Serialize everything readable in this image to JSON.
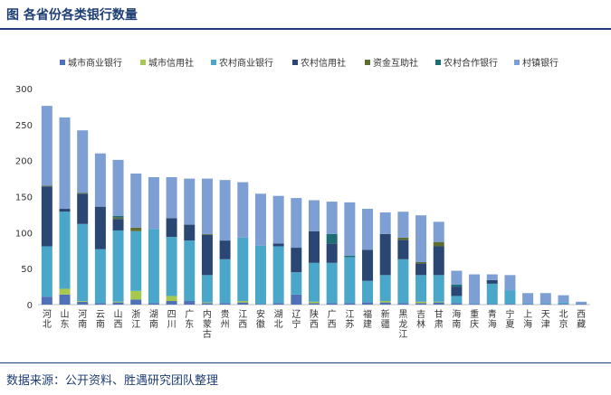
{
  "header": {
    "title": "图  各省份各类银行数量"
  },
  "footer": {
    "source": "数据来源：公开资料、胜遇研究团队整理"
  },
  "chart_data": {
    "type": "bar",
    "stacked": true,
    "title": "",
    "xlabel": "",
    "ylabel": "",
    "ylim": [
      0,
      300
    ],
    "yticks": [
      0,
      50,
      100,
      150,
      200,
      250,
      300
    ],
    "grid": false,
    "legend": "top",
    "categories": [
      "河北",
      "山东",
      "河南",
      "云南",
      "山西",
      "浙江",
      "湖南",
      "四川",
      "广东",
      "内蒙古",
      "贵州",
      "江西",
      "安徽",
      "湖北",
      "辽宁",
      "陕西",
      "广西",
      "江苏",
      "福建",
      "新疆",
      "黑龙江",
      "吉林",
      "甘肃",
      "海南",
      "重庆",
      "青海",
      "宁夏",
      "上海",
      "天津",
      "北京",
      "西藏"
    ],
    "series": [
      {
        "name": "城市商业银行",
        "color": "#4f71b8",
        "values": [
          11,
          14,
          4,
          2,
          3,
          7,
          2,
          5,
          5,
          2,
          2,
          3,
          1,
          2,
          14,
          2,
          2,
          2,
          3,
          3,
          2,
          2,
          3,
          2,
          1,
          1,
          1,
          1,
          1,
          1,
          1
        ]
      },
      {
        "name": "城市信用社",
        "color": "#a6c84e",
        "values": [
          0,
          8,
          1,
          0,
          1,
          12,
          0,
          7,
          0,
          1,
          0,
          2,
          0,
          0,
          0,
          2,
          0,
          0,
          0,
          2,
          0,
          2,
          1,
          0,
          0,
          0,
          0,
          0,
          0,
          0,
          0
        ]
      },
      {
        "name": "农村商业银行",
        "color": "#4aa7c9",
        "values": [
          70,
          107,
          107,
          75,
          99,
          83,
          103,
          82,
          84,
          38,
          61,
          88,
          81,
          79,
          31,
          54,
          56,
          64,
          30,
          36,
          61,
          37,
          37,
          10,
          1,
          28,
          19,
          1,
          1,
          2,
          0
        ]
      },
      {
        "name": "农村信用社",
        "color": "#2a4673",
        "values": [
          83,
          4,
          42,
          59,
          16,
          0,
          0,
          26,
          22,
          56,
          26,
          0,
          0,
          4,
          34,
          44,
          27,
          0,
          43,
          57,
          27,
          16,
          40,
          13,
          0,
          5,
          0,
          0,
          0,
          0,
          0
        ]
      },
      {
        "name": "资金互助社",
        "color": "#5e6e33",
        "values": [
          1,
          0,
          1,
          0,
          2,
          5,
          0,
          0,
          0,
          1,
          0,
          0,
          0,
          0,
          0,
          0,
          0,
          0,
          0,
          0,
          3,
          2,
          6,
          0,
          0,
          0,
          0,
          0,
          0,
          0,
          0
        ]
      },
      {
        "name": "农村合作银行",
        "color": "#1e6e78",
        "values": [
          0,
          0,
          0,
          0,
          2,
          0,
          0,
          0,
          0,
          0,
          0,
          0,
          0,
          0,
          0,
          0,
          13,
          2,
          0,
          0,
          0,
          0,
          0,
          3,
          0,
          0,
          0,
          0,
          0,
          0,
          0
        ]
      },
      {
        "name": "村镇银行",
        "color": "#7e9fd3",
        "values": [
          111,
          127,
          87,
          74,
          78,
          75,
          72,
          57,
          64,
          77,
          84,
          77,
          72,
          66,
          69,
          43,
          45,
          74,
          57,
          30,
          36,
          65,
          28,
          19,
          40,
          8,
          21,
          14,
          14,
          10,
          3
        ]
      }
    ]
  }
}
